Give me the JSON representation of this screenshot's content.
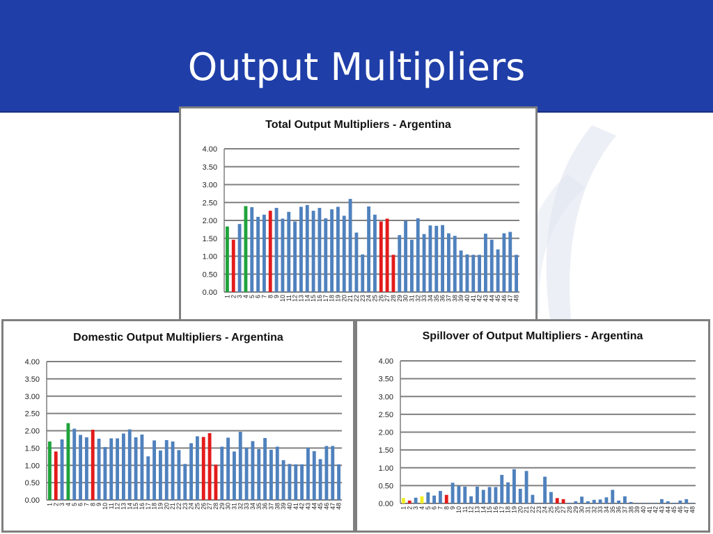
{
  "slide": {
    "title": "Output Multipliers"
  },
  "colors": {
    "header": "#1f3ea8",
    "bar_default": "#4f81bd",
    "bar_green": "#1fa33c",
    "bar_red": "#e31b1b",
    "bar_yellow": "#f0ef20",
    "gridline": "#7f7f7f"
  },
  "chart_data": [
    {
      "id": "total",
      "type": "bar",
      "title": "Total Output Multipliers - Argentina",
      "ylim": [
        0,
        4
      ],
      "y_ticks": [
        "0.00",
        "0.50",
        "1.00",
        "1.50",
        "2.00",
        "2.50",
        "3.00",
        "3.50",
        "4.00"
      ],
      "grid": true,
      "categories": [
        "1",
        "2",
        "3",
        "4",
        "5",
        "6",
        "7",
        "8",
        "9",
        "10",
        "11",
        "12",
        "13",
        "14",
        "15",
        "16",
        "17",
        "18",
        "19",
        "20",
        "21",
        "22",
        "23",
        "24",
        "25",
        "26",
        "27",
        "28",
        "29",
        "30",
        "31",
        "32",
        "33",
        "34",
        "35",
        "36",
        "37",
        "38",
        "39",
        "40",
        "41",
        "42",
        "43",
        "44",
        "45",
        "46",
        "47",
        "48"
      ],
      "values": [
        1.83,
        1.46,
        1.9,
        2.4,
        2.37,
        2.1,
        2.16,
        2.27,
        2.35,
        2.05,
        2.24,
        1.97,
        2.38,
        2.43,
        2.27,
        2.35,
        2.06,
        2.31,
        2.38,
        2.13,
        2.6,
        1.66,
        1.05,
        2.39,
        2.16,
        1.97,
        2.05,
        1.04,
        1.59,
        1.99,
        1.46,
        2.06,
        1.62,
        1.86,
        1.85,
        1.87,
        1.64,
        1.57,
        1.16,
        1.05,
        1.04,
        1.04,
        1.63,
        1.46,
        1.19,
        1.64,
        1.68,
        1.04
      ],
      "highlight": {
        "1": "green",
        "2": "red",
        "4": "green",
        "8": "red",
        "26": "red",
        "27": "red",
        "28": "red"
      }
    },
    {
      "id": "domestic",
      "type": "bar",
      "title": "Domestic Output Multipliers - Argentina",
      "ylim": [
        0,
        4
      ],
      "y_ticks": [
        "0.00",
        "0.50",
        "1.00",
        "1.50",
        "2.00",
        "2.50",
        "3.00",
        "3.50",
        "4.00"
      ],
      "grid": true,
      "categories": [
        "1",
        "2",
        "3",
        "4",
        "5",
        "6",
        "7",
        "8",
        "9",
        "10",
        "11",
        "12",
        "13",
        "14",
        "15",
        "16",
        "17",
        "18",
        "19",
        "20",
        "21",
        "22",
        "23",
        "24",
        "25",
        "26",
        "27",
        "28",
        "29",
        "30",
        "31",
        "32",
        "33",
        "34",
        "35",
        "36",
        "37",
        "38",
        "39",
        "40",
        "41",
        "42",
        "43",
        "44",
        "45",
        "46",
        "47",
        "48"
      ],
      "values": [
        1.69,
        1.4,
        1.75,
        2.22,
        2.06,
        1.88,
        1.81,
        2.03,
        1.77,
        1.53,
        1.78,
        1.78,
        1.92,
        2.04,
        1.81,
        1.89,
        1.26,
        1.72,
        1.43,
        1.73,
        1.69,
        1.44,
        1.04,
        1.64,
        1.84,
        1.82,
        1.93,
        1.02,
        1.54,
        1.8,
        1.4,
        1.97,
        1.51,
        1.7,
        1.47,
        1.79,
        1.45,
        1.54,
        1.15,
        1.04,
        1.03,
        1.03,
        1.51,
        1.41,
        1.18,
        1.56,
        1.56,
        1.03
      ],
      "highlight": {
        "1": "green",
        "2": "red",
        "4": "green",
        "8": "red",
        "26": "red",
        "27": "red",
        "28": "red"
      }
    },
    {
      "id": "spillover",
      "type": "bar",
      "title": "Spillover of Output Multipliers - Argentina",
      "ylim": [
        0,
        4
      ],
      "y_ticks": [
        "0.00",
        "0.50",
        "1.00",
        "1.50",
        "2.00",
        "2.50",
        "3.00",
        "3.50",
        "4.00"
      ],
      "grid": true,
      "categories": [
        "1",
        "2",
        "3",
        "4",
        "5",
        "6",
        "7",
        "8",
        "9",
        "10",
        "11",
        "12",
        "13",
        "14",
        "15",
        "16",
        "17",
        "18",
        "19",
        "20",
        "21",
        "22",
        "23",
        "24",
        "25",
        "26",
        "27",
        "28",
        "29",
        "30",
        "31",
        "32",
        "33",
        "34",
        "35",
        "36",
        "37",
        "38",
        "39",
        "40",
        "41",
        "42",
        "43",
        "44",
        "45",
        "46",
        "47",
        "48"
      ],
      "values": [
        0.15,
        0.08,
        0.16,
        0.2,
        0.31,
        0.22,
        0.35,
        0.24,
        0.58,
        0.49,
        0.47,
        0.2,
        0.47,
        0.38,
        0.46,
        0.46,
        0.8,
        0.59,
        0.96,
        0.41,
        0.91,
        0.24,
        0.01,
        0.75,
        0.32,
        0.15,
        0.12,
        0.02,
        0.06,
        0.19,
        0.06,
        0.1,
        0.11,
        0.17,
        0.38,
        0.08,
        0.2,
        0.04,
        0.01,
        0.01,
        0.01,
        0.01,
        0.12,
        0.06,
        0.02,
        0.08,
        0.12,
        0.01
      ],
      "highlight": {
        "1": "yellow",
        "2": "red",
        "4": "yellow",
        "8": "red",
        "26": "red",
        "27": "red"
      }
    }
  ]
}
